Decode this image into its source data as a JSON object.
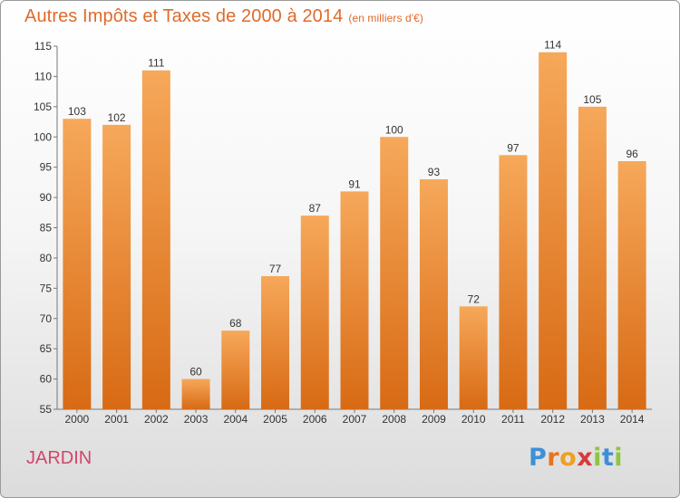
{
  "header": {
    "title": "Autres Impôts et Taxes de 2000 à 2014",
    "unit": "(en milliers d'€)"
  },
  "footer": {
    "city": "JARDIN",
    "logo": "Proxiti"
  },
  "colors": {
    "bar_light": "#f6a85a",
    "bar_dark": "#d86a14",
    "title": "#e06a2a",
    "city": "#d3456a"
  },
  "chart_data": {
    "type": "bar",
    "title": "Autres Impôts et Taxes de 2000 à 2014",
    "subtitle": "(en milliers d'€)",
    "xlabel": "",
    "ylabel": "",
    "categories": [
      "2000",
      "2001",
      "2002",
      "2003",
      "2004",
      "2005",
      "2006",
      "2007",
      "2008",
      "2009",
      "2010",
      "2011",
      "2012",
      "2013",
      "2014"
    ],
    "values": [
      103,
      102,
      111,
      60,
      68,
      77,
      87,
      91,
      100,
      93,
      72,
      97,
      114,
      105,
      96
    ],
    "ylim": [
      55,
      115
    ],
    "yticks": [
      55,
      60,
      65,
      70,
      75,
      80,
      85,
      90,
      95,
      100,
      105,
      110,
      115
    ],
    "grid": false,
    "legend": "none"
  }
}
